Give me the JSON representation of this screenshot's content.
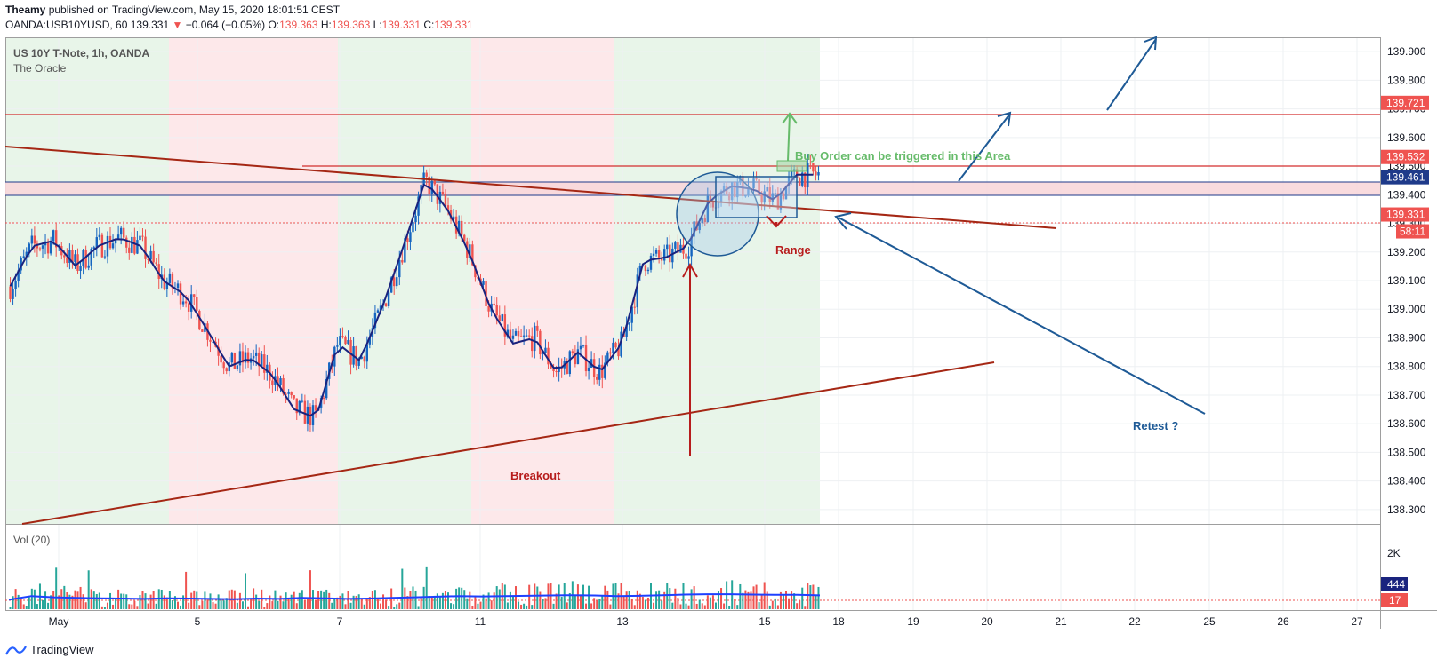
{
  "header": {
    "author": "Theamy",
    "published_text": "published on TradingView.com, May 15, 2020 18:01:51 CEST"
  },
  "ohlc": {
    "symbol": "OANDA:USB10YUSD, 60",
    "last": "139.331",
    "change_arrow": "▼",
    "change": "−0.064 (−0.05%)",
    "o_label": "O:",
    "o": "139.363",
    "h_label": "H:",
    "h": "139.363",
    "l_label": "L:",
    "l": "139.331",
    "c_label": "C:",
    "c": "139.331"
  },
  "legend": {
    "title": "US 10Y T-Note, 1h, OANDA",
    "indicator": "The Oracle",
    "volume_title": "Vol (20)"
  },
  "annotations": {
    "buy_order": "Buy Order can be triggered in this Area",
    "range": "Range",
    "breakout": "Breakout",
    "retest": "Retest ?"
  },
  "footer": {
    "brand": "TradingView",
    "logo_icon": "tradingview-logo-icon"
  },
  "colors": {
    "up": "#1565c0",
    "down": "#ef5350",
    "trend_line": "#b71c1c",
    "arrow": "#1e5a96",
    "buy_text": "#66bb6a",
    "zone": "#f8d7da",
    "bg_green": "#e8f5e9",
    "bg_red": "#fde8ea"
  },
  "chart_data": {
    "type": "candlestick",
    "title": "US 10Y T-Note, 1h, OANDA",
    "x_tick_labels": [
      "May",
      "5",
      "7",
      "11",
      "13",
      "15",
      "18",
      "19",
      "20",
      "21",
      "22",
      "25",
      "26",
      "27"
    ],
    "y_tick_labels": [
      "139.900",
      "139.800",
      "139.700",
      "139.600",
      "139.500",
      "139.400",
      "139.300",
      "139.200",
      "139.100",
      "139.000",
      "138.900",
      "138.800",
      "138.700",
      "138.600",
      "138.500",
      "138.400",
      "138.300"
    ],
    "ylim": [
      138.25,
      139.95
    ],
    "price_labels": [
      {
        "value": 139.721,
        "text": "139.721",
        "color": "#ef5350"
      },
      {
        "value": 139.532,
        "text": "139.532",
        "color": "#ef5350"
      },
      {
        "value": 139.461,
        "text": "139.461",
        "color": "#1e3a8a"
      },
      {
        "value": 139.331,
        "text": "139.331",
        "color": "#ef5350"
      }
    ],
    "countdown": "58:11",
    "volume_tick_labels": [
      "2K"
    ],
    "volume_labels": [
      {
        "text": "444",
        "color": "#1a237e"
      },
      {
        "text": "17",
        "color": "#ef5350"
      }
    ],
    "series": [
      {
        "name": "The Oracle",
        "values": [
          139.08,
          139.22,
          139.24,
          139.15,
          139.22,
          139.25,
          139.22,
          139.1,
          139.05,
          138.93,
          138.8,
          138.83,
          138.77,
          138.65,
          138.62,
          138.88,
          138.82,
          139.0,
          139.22,
          139.45,
          139.35,
          139.2,
          139.0,
          138.88,
          138.9,
          138.78,
          138.85,
          138.78,
          138.88,
          139.17,
          139.18,
          139.22,
          139.38,
          139.43,
          139.42,
          139.38,
          139.47,
          139.47
        ]
      },
      {
        "name": "Vol (20)",
        "values": [
          300,
          420,
          380,
          360,
          350,
          340,
          330,
          350,
          340,
          330,
          320,
          340,
          330,
          360,
          350,
          330,
          340,
          360,
          380,
          400,
          420,
          410,
          420,
          430,
          440,
          450,
          440,
          420,
          430,
          450,
          470,
          480,
          480,
          470,
          460,
          460,
          444
        ]
      }
    ]
  }
}
